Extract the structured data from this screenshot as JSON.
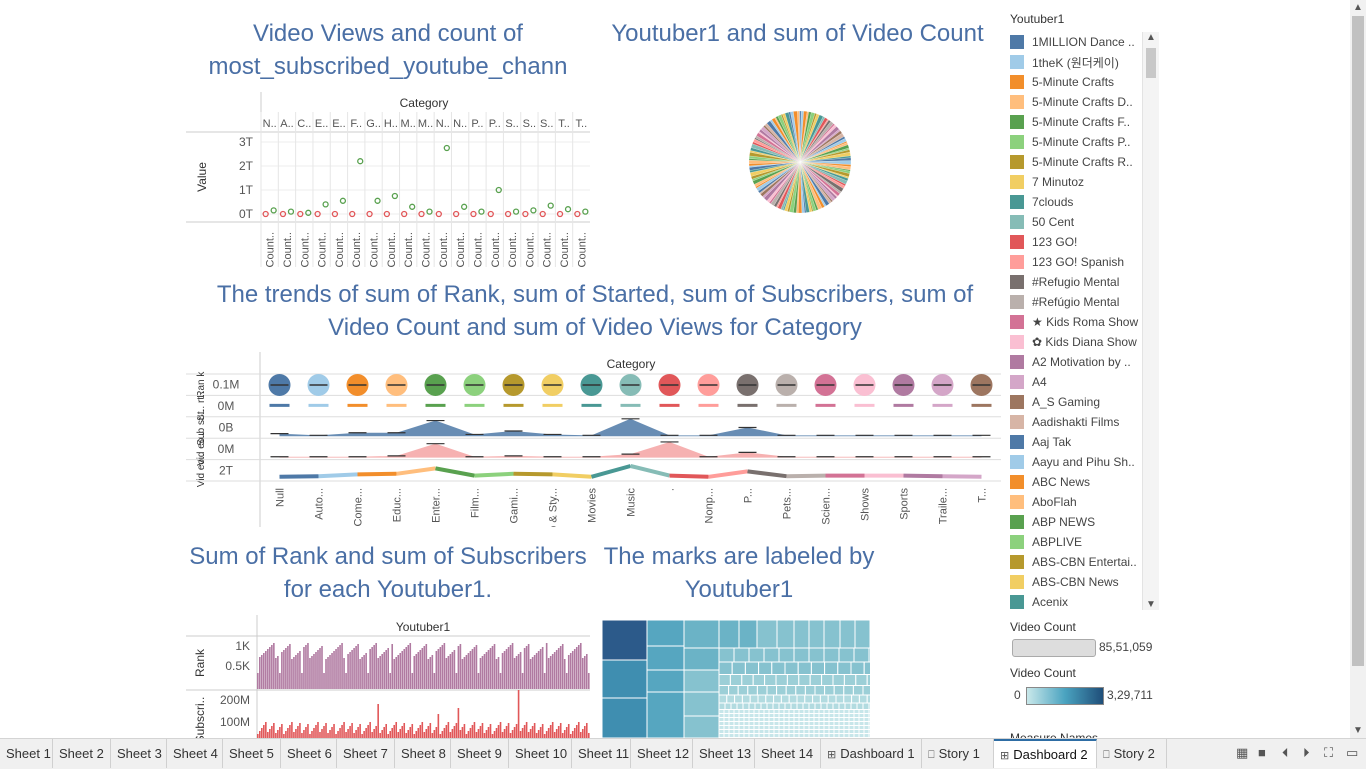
{
  "titles": {
    "t1": "Video Views and count of most_subscribed_youtube_chann",
    "t2": "Youtuber1 and sum of Video Count",
    "t3": "The trends of sum of Rank, sum of Started, sum of Subscribers, sum of Video Count and sum of Video Views for Category",
    "t4": "Sum of Rank and sum of Subscribers for each Youtuber1.",
    "t5": "The marks are labeled by Youtuber1"
  },
  "chart1": {
    "header": "Category",
    "ylabel": "Value",
    "yticks": [
      "3T",
      "2T",
      "1T",
      "0T"
    ],
    "cat_abbrev": [
      "N..",
      "A..",
      "C..",
      "E..",
      "E..",
      "F..",
      "G..",
      "H..",
      "M..",
      "M..",
      "N..",
      "N..",
      "P..",
      "P..",
      "S..",
      "S..",
      "S..",
      "T..",
      "T.."
    ],
    "bottom_label": "Count..",
    "points": [
      0.15,
      0.1,
      0.05,
      0.4,
      0.55,
      2.2,
      0.55,
      0.75,
      0.3,
      0.1,
      2.75,
      0.3,
      0.1,
      1.0,
      0.1,
      0.15,
      0.35,
      0.2,
      0.1
    ]
  },
  "chart3": {
    "header": "Category",
    "row_labels": [
      "Rank",
      "Started",
      "Subscribers",
      "Video Count",
      "Video Views"
    ],
    "row_axis_short": [
      "Ran k",
      "St.. rt..",
      "Sub sc..",
      "Vid eo..",
      "Vid eo.."
    ],
    "row_ticks": [
      "0.1M",
      "0M",
      "0B",
      "0M",
      "2T"
    ],
    "categories": [
      "Null",
      "Auto...",
      "Come...",
      "Educ...",
      "Enter...",
      "Film...",
      "Gami...",
      "Howto & Sty...",
      "Movies",
      "Music",
      ".",
      "Nonp...",
      "P...",
      "Pets...",
      "Scien...",
      "Shows",
      "Sports",
      "Traile...",
      "T..."
    ],
    "subscribers_trend": [
      0.15,
      0.05,
      0.2,
      0.2,
      0.9,
      0.1,
      0.3,
      0.1,
      0.05,
      1.0,
      0.05,
      0.05,
      0.5,
      0.05,
      0.05,
      0.05,
      0.05,
      0.05,
      0.05
    ],
    "videocount_trend": [
      0.05,
      0.05,
      0.05,
      0.1,
      0.8,
      0.05,
      0.1,
      0.05,
      0.05,
      0.2,
      0.9,
      0.05,
      0.3,
      0.05,
      0.05,
      0.05,
      0.05,
      0.05,
      0.05
    ],
    "views_trend": [
      0.1,
      0.15,
      0.3,
      0.35,
      0.8,
      0.2,
      0.35,
      0.3,
      0.1,
      1.0,
      0.2,
      0.1,
      0.55,
      0.15,
      0.2,
      0.2,
      0.2,
      0.15,
      0.1
    ]
  },
  "chart4": {
    "header": "Youtuber1",
    "rank_label": "Rank",
    "rank_ticks": [
      "1K",
      "0.5K"
    ],
    "subs_label": "Subscri..",
    "subs_ticks": [
      "200M",
      "100M"
    ]
  },
  "legend": {
    "title": "Youtuber1",
    "items": [
      {
        "label": "1MILLION Dance ..",
        "color": "#4e79a7"
      },
      {
        "label": "1theK (원더케이)",
        "color": "#a0cbe8"
      },
      {
        "label": "5-Minute Crafts",
        "color": "#f28e2b"
      },
      {
        "label": "5-Minute Crafts D..",
        "color": "#ffbe7d"
      },
      {
        "label": "5-Minute Crafts F..",
        "color": "#59a14f"
      },
      {
        "label": "5-Minute Crafts P..",
        "color": "#8cd17d"
      },
      {
        "label": "5-Minute Crafts R..",
        "color": "#b6992d"
      },
      {
        "label": "7 Minutoz",
        "color": "#f1ce63"
      },
      {
        "label": "7clouds",
        "color": "#499894"
      },
      {
        "label": "50 Cent",
        "color": "#86bcb6"
      },
      {
        "label": "123 GO!",
        "color": "#e15759"
      },
      {
        "label": "123 GO! Spanish",
        "color": "#ff9d9a"
      },
      {
        "label": "#Refugio Mental",
        "color": "#79706e"
      },
      {
        "label": "#Refúgio Mental",
        "color": "#bab0ac"
      },
      {
        "label": "★ Kids Roma Show",
        "color": "#d37295"
      },
      {
        "label": "✿ Kids Diana Show",
        "color": "#fabfd2"
      },
      {
        "label": "A2 Motivation by ..",
        "color": "#b07aa1"
      },
      {
        "label": "A4",
        "color": "#d4a6c8"
      },
      {
        "label": "A_S Gaming",
        "color": "#9d7660"
      },
      {
        "label": "Aadishakti Films",
        "color": "#d7b5a6"
      },
      {
        "label": "Aaj Tak",
        "color": "#4e79a7"
      },
      {
        "label": "Aayu and Pihu Sh..",
        "color": "#a0cbe8"
      },
      {
        "label": "ABC News",
        "color": "#f28e2b"
      },
      {
        "label": "AboFlah",
        "color": "#ffbe7d"
      },
      {
        "label": "ABP NEWS",
        "color": "#59a14f"
      },
      {
        "label": "ABPLIVE",
        "color": "#8cd17d"
      },
      {
        "label": "ABS-CBN Entertai..",
        "color": "#b6992d"
      },
      {
        "label": "ABS-CBN News",
        "color": "#f1ce63"
      },
      {
        "label": "Acenix",
        "color": "#499894"
      }
    ]
  },
  "size_legend": {
    "title": "Video Count",
    "max": "85,51,059"
  },
  "color_legend": {
    "title": "Video Count",
    "min": "0",
    "max": "3,29,711"
  },
  "measure_names": "Measure Names",
  "tabs": [
    {
      "label": "Sheet 1",
      "icon": ""
    },
    {
      "label": "Sheet 2",
      "icon": ""
    },
    {
      "label": "Sheet 3",
      "icon": ""
    },
    {
      "label": "Sheet 4",
      "icon": ""
    },
    {
      "label": "Sheet 5",
      "icon": ""
    },
    {
      "label": "Sheet 6",
      "icon": ""
    },
    {
      "label": "Sheet 7",
      "icon": ""
    },
    {
      "label": "Sheet 8",
      "icon": ""
    },
    {
      "label": "Sheet 9",
      "icon": ""
    },
    {
      "label": "Sheet 10",
      "icon": ""
    },
    {
      "label": "Sheet 11",
      "icon": ""
    },
    {
      "label": "Sheet 12",
      "icon": ""
    },
    {
      "label": "Sheet 13",
      "icon": ""
    },
    {
      "label": "Sheet 14",
      "icon": ""
    },
    {
      "label": "Dashboard 1",
      "icon": "dashboard-icon"
    },
    {
      "label": "Story 1",
      "icon": "story-icon"
    },
    {
      "label": "Dashboard 2",
      "icon": "dashboard-icon"
    },
    {
      "label": "Story 2",
      "icon": "story-icon"
    }
  ],
  "active_tab": "Dashboard 2"
}
